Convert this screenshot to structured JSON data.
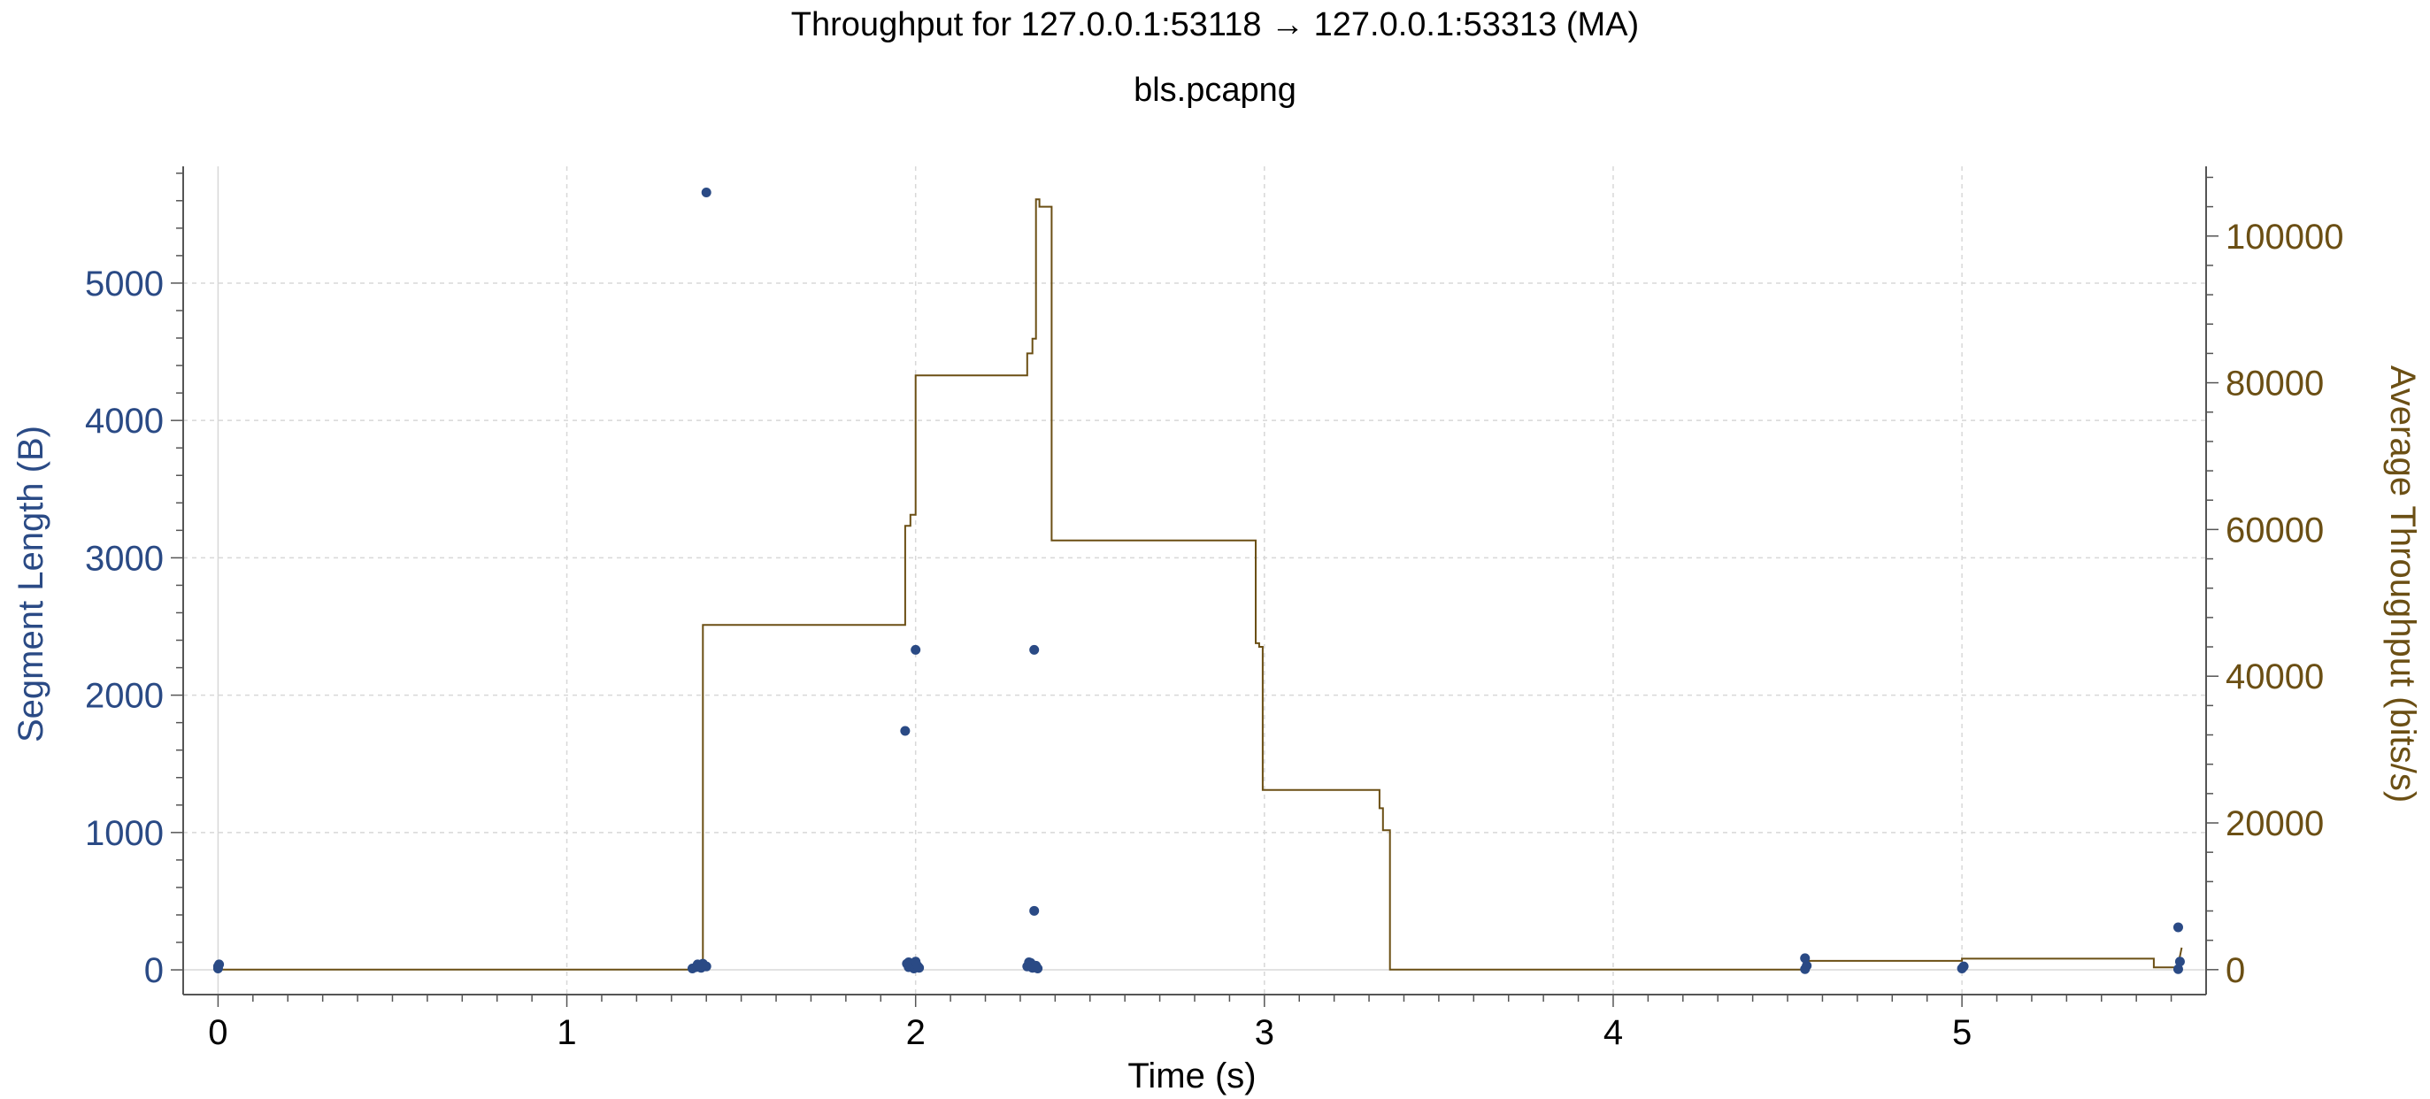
{
  "chart_data": {
    "type": "line",
    "title": "Throughput for 127.0.0.1:53118 → 127.0.0.1:53313 (MA)",
    "subtitle": "bls.pcapng",
    "xlabel": "Time (s)",
    "ylabel": "Segment Length (B)",
    "y2label": "Average Throughput (bits/s)",
    "xlim": [
      -0.1,
      5.7
    ],
    "ylim": [
      -180,
      5850
    ],
    "y2lim": [
      -3400,
      109500
    ],
    "x_ticks": [
      "0",
      "1",
      "2",
      "3",
      "4",
      "5"
    ],
    "y_ticks": [
      "0",
      "1000",
      "2000",
      "3000",
      "4000",
      "5000"
    ],
    "y2_ticks": [
      "0",
      "20000",
      "40000",
      "60000",
      "80000",
      "100000"
    ],
    "grid": true,
    "colors": {
      "segment": "#2a4a85",
      "throughput": "#6b4f14",
      "axis": "#555555",
      "grid": "#d8d8d8"
    },
    "series": [
      {
        "kind": "scatter",
        "axis": "left",
        "x": [
          0.0,
          0.0,
          0.003,
          1.36,
          1.37,
          1.38,
          1.385,
          1.39,
          1.4,
          1.4,
          1.39,
          1.375,
          1.97,
          1.98,
          1.99,
          2.0,
          2.01,
          1.98,
          1.995,
          2.005,
          1.975,
          2.0,
          2.32,
          2.33,
          2.335,
          2.34,
          2.345,
          2.35,
          2.325,
          2.34,
          2.33,
          2.34,
          4.55,
          4.555,
          4.55,
          5.0,
          5.005,
          5.62,
          5.625,
          5.62
        ],
        "y": [
          10,
          25,
          40,
          10,
          20,
          35,
          15,
          45,
          25,
          5660,
          30,
          40,
          1740,
          20,
          35,
          2330,
          15,
          55,
          10,
          30,
          45,
          60,
          25,
          40,
          15,
          2330,
          30,
          10,
          55,
          430,
          50,
          20,
          5,
          30,
          85,
          10,
          25,
          5,
          60,
          310
        ]
      },
      {
        "kind": "step",
        "axis": "right",
        "x": [
          0.0,
          1.0,
          1.36,
          1.39,
          1.39,
          1.97,
          1.97,
          1.985,
          1.985,
          2.0,
          2.0,
          2.32,
          2.32,
          2.335,
          2.335,
          2.345,
          2.345,
          2.355,
          2.355,
          2.37,
          2.37,
          2.39,
          2.39,
          2.975,
          2.975,
          2.985,
          2.985,
          2.995,
          2.995,
          3.33,
          3.33,
          3.34,
          3.34,
          3.36,
          3.36,
          4.55,
          4.55,
          5.0,
          5.0,
          5.55,
          5.55,
          5.62,
          5.62,
          5.63
        ],
        "y": [
          0,
          0,
          0,
          0,
          47000,
          47000,
          60500,
          60500,
          62000,
          62000,
          81000,
          81000,
          84000,
          84000,
          86000,
          86000,
          105000,
          105000,
          104000,
          104000,
          104000,
          104000,
          58500,
          58500,
          44500,
          44500,
          44000,
          44000,
          24500,
          24500,
          22000,
          22000,
          19000,
          19000,
          0,
          0,
          1200,
          1200,
          1500,
          1500,
          300,
          300,
          700,
          3000
        ]
      }
    ]
  }
}
